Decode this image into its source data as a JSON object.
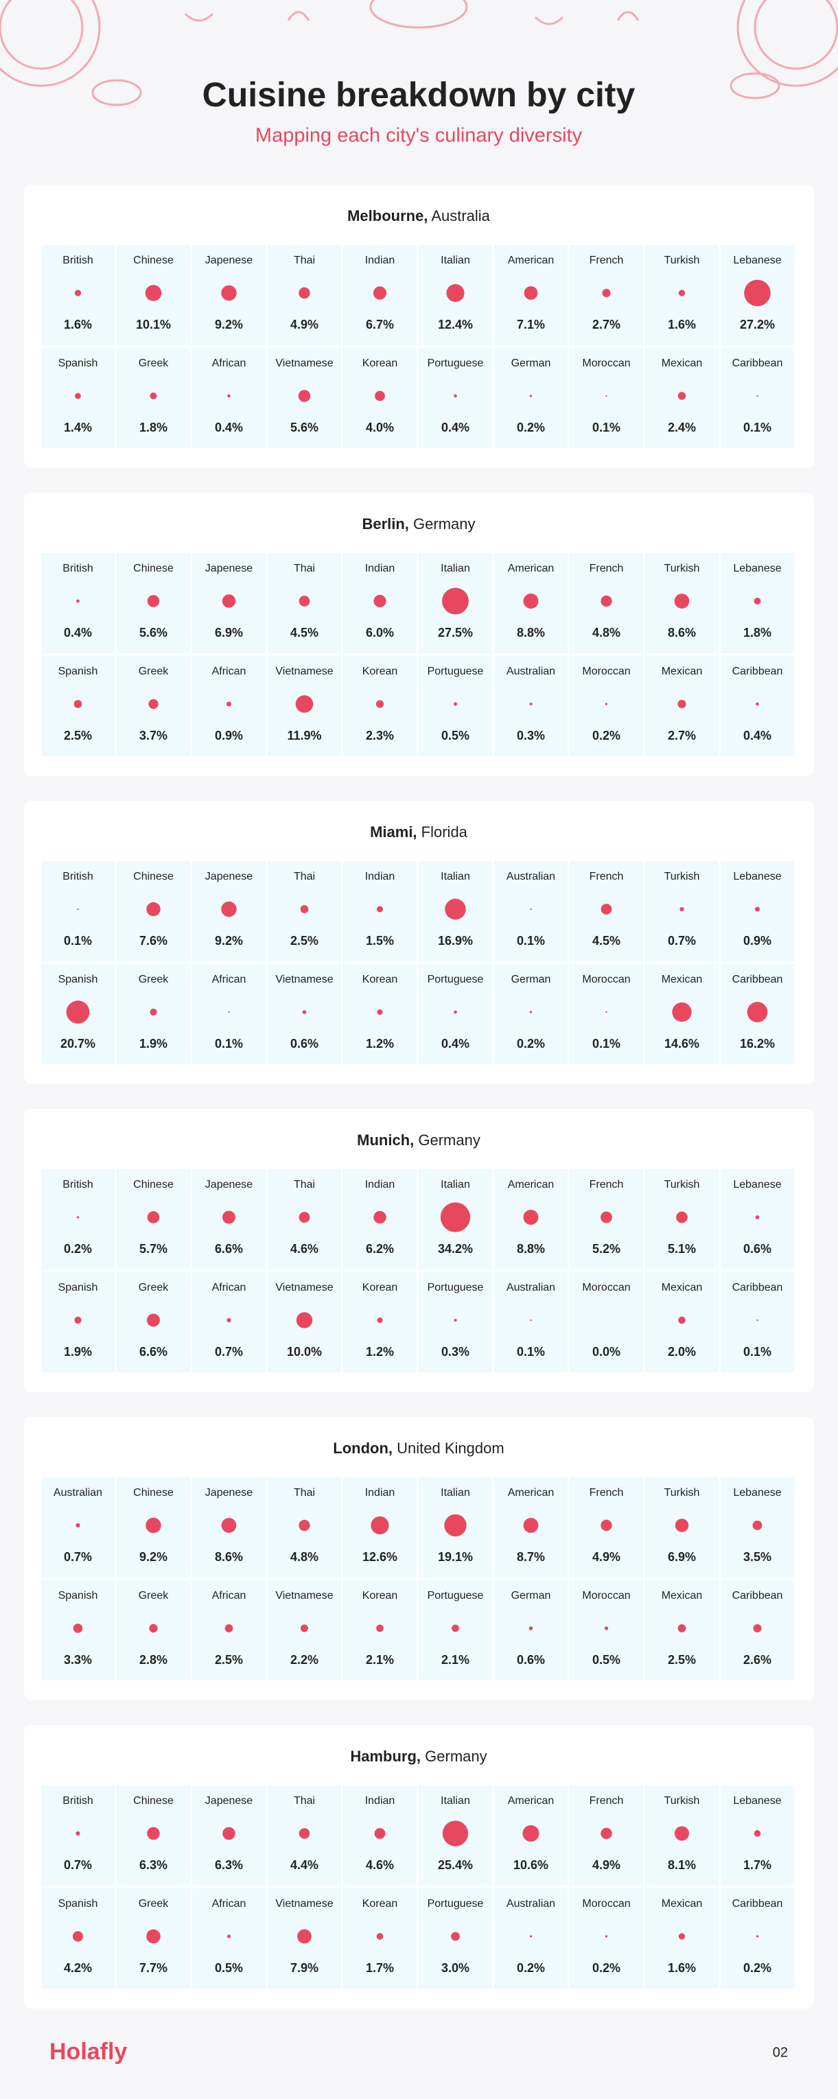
{
  "header": {
    "title": "Cuisine breakdown by city",
    "subtitle": "Mapping each city's culinary diversity"
  },
  "chart_data": [
    {
      "type": "bubble-grid",
      "title": "Melbourne,",
      "subtitle": "Australia",
      "color": "#e8485f",
      "categories": [
        "British",
        "Chinese",
        "Japenese",
        "Thai",
        "Indian",
        "Italian",
        "American",
        "French",
        "Turkish",
        "Lebanese",
        "Spanish",
        "Greek",
        "African",
        "Vietnamese",
        "Korean",
        "Portuguese",
        "German",
        "Moroccan",
        "Mexican",
        "Caribbean"
      ],
      "values": [
        1.6,
        10.1,
        9.2,
        4.9,
        6.7,
        12.4,
        7.1,
        2.7,
        1.6,
        27.2,
        1.4,
        1.8,
        0.4,
        5.6,
        4.0,
        0.4,
        0.2,
        0.1,
        2.4,
        0.1
      ],
      "value_labels": [
        "1.6%",
        "10.1%",
        "9.2%",
        "4.9%",
        "6.7%",
        "12.4%",
        "7.1%",
        "2.7%",
        "1.6%",
        "27.2%",
        "1.4%",
        "1.8%",
        "0.4%",
        "5.6%",
        "4.0%",
        "0.4%",
        "0.2%",
        "0.1%",
        "2.4%",
        "0.1%"
      ]
    },
    {
      "type": "bubble-grid",
      "title": "Berlin,",
      "subtitle": "Germany",
      "color": "#e8485f",
      "categories": [
        "British",
        "Chinese",
        "Japenese",
        "Thai",
        "Indian",
        "Italian",
        "American",
        "French",
        "Turkish",
        "Lebanese",
        "Spanish",
        "Greek",
        "African",
        "Vietnamese",
        "Korean",
        "Portuguese",
        "Australian",
        "Moroccan",
        "Mexican",
        "Caribbean"
      ],
      "values": [
        0.4,
        5.6,
        6.9,
        4.5,
        6.0,
        27.5,
        8.8,
        4.8,
        8.6,
        1.8,
        2.5,
        3.7,
        0.9,
        11.9,
        2.3,
        0.5,
        0.3,
        0.2,
        2.7,
        0.4
      ],
      "value_labels": [
        "0.4%",
        "5.6%",
        "6.9%",
        "4.5%",
        "6.0%",
        "27.5%",
        "8.8%",
        "4.8%",
        "8.6%",
        "1.8%",
        "2.5%",
        "3.7%",
        "0.9%",
        "11.9%",
        "2.3%",
        "0.5%",
        "0.3%",
        "0.2%",
        "2.7%",
        "0.4%"
      ]
    },
    {
      "type": "bubble-grid",
      "title": "Miami,",
      "subtitle": "Florida",
      "color": "#e8485f",
      "categories": [
        "British",
        "Chinese",
        "Japenese",
        "Thai",
        "Indian",
        "Italian",
        "Australian",
        "French",
        "Turkish",
        "Lebanese",
        "Spanish",
        "Greek",
        "African",
        "Vietnamese",
        "Korean",
        "Portuguese",
        "German",
        "Moroccan",
        "Mexican",
        "Caribbean"
      ],
      "values": [
        0.1,
        7.6,
        9.2,
        2.5,
        1.5,
        16.9,
        0.1,
        4.5,
        0.7,
        0.9,
        20.7,
        1.9,
        0.1,
        0.6,
        1.2,
        0.4,
        0.2,
        0.1,
        14.6,
        16.2
      ],
      "value_labels": [
        "0.1%",
        "7.6%",
        "9.2%",
        "2.5%",
        "1.5%",
        "16.9%",
        "0.1%",
        "4.5%",
        "0.7%",
        "0.9%",
        "20.7%",
        "1.9%",
        "0.1%",
        "0.6%",
        "1.2%",
        "0.4%",
        "0.2%",
        "0.1%",
        "14.6%",
        "16.2%"
      ]
    },
    {
      "type": "bubble-grid",
      "title": "Munich,",
      "subtitle": "Germany",
      "color": "#e8485f",
      "categories": [
        "British",
        "Chinese",
        "Japenese",
        "Thai",
        "Indian",
        "Italian",
        "American",
        "French",
        "Turkish",
        "Lebanese",
        "Spanish",
        "Greek",
        "African",
        "Vietnamese",
        "Korean",
        "Portuguese",
        "Australian",
        "Moroccan",
        "Mexican",
        "Caribbean"
      ],
      "values": [
        0.2,
        5.7,
        6.6,
        4.6,
        6.2,
        34.2,
        8.8,
        5.2,
        5.1,
        0.6,
        1.9,
        6.6,
        0.7,
        10.0,
        1.2,
        0.3,
        0.1,
        0.0,
        2.0,
        0.1
      ],
      "value_labels": [
        "0.2%",
        "5.7%",
        "6.6%",
        "4.6%",
        "6.2%",
        "34.2%",
        "8.8%",
        "5.2%",
        "5.1%",
        "0.6%",
        "1.9%",
        "6.6%",
        "0.7%",
        "10.0%",
        "1.2%",
        "0.3%",
        "0.1%",
        "0.0%",
        "2.0%",
        "0.1%"
      ]
    },
    {
      "type": "bubble-grid",
      "title": "London,",
      "subtitle": "United Kingdom",
      "color": "#e8485f",
      "categories": [
        "Australian",
        "Chinese",
        "Japenese",
        "Thai",
        "Indian",
        "Italian",
        "American",
        "French",
        "Turkish",
        "Lebanese",
        "Spanish",
        "Greek",
        "African",
        "Vietnamese",
        "Korean",
        "Portuguese",
        "German",
        "Moroccan",
        "Mexican",
        "Caribbean"
      ],
      "values": [
        0.7,
        9.2,
        8.6,
        4.8,
        12.6,
        19.1,
        8.7,
        4.9,
        6.9,
        3.5,
        3.3,
        2.8,
        2.5,
        2.2,
        2.1,
        2.1,
        0.6,
        0.5,
        2.5,
        2.6
      ],
      "value_labels": [
        "0.7%",
        "9.2%",
        "8.6%",
        "4.8%",
        "12.6%",
        "19.1%",
        "8.7%",
        "4.9%",
        "6.9%",
        "3.5%",
        "3.3%",
        "2.8%",
        "2.5%",
        "2.2%",
        "2.1%",
        "2.1%",
        "0.6%",
        "0.5%",
        "2.5%",
        "2.6%"
      ]
    },
    {
      "type": "bubble-grid",
      "title": "Hamburg,",
      "subtitle": "Germany",
      "color": "#e8485f",
      "categories": [
        "British",
        "Chinese",
        "Japenese",
        "Thai",
        "Indian",
        "Italian",
        "American",
        "French",
        "Turkish",
        "Lebanese",
        "Spanish",
        "Greek",
        "African",
        "Vietnamese",
        "Korean",
        "Portuguese",
        "Australian",
        "Moroccan",
        "Mexican",
        "Caribbean"
      ],
      "values": [
        0.7,
        6.3,
        6.3,
        4.4,
        4.6,
        25.4,
        10.6,
        4.9,
        8.1,
        1.7,
        4.2,
        7.7,
        0.5,
        7.9,
        1.7,
        3.0,
        0.2,
        0.2,
        1.6,
        0.2
      ],
      "value_labels": [
        "0.7%",
        "6.3%",
        "6.3%",
        "4.4%",
        "4.6%",
        "25.4%",
        "10.6%",
        "4.9%",
        "8.1%",
        "1.7%",
        "4.2%",
        "7.7%",
        "0.5%",
        "7.9%",
        "1.7%",
        "3.0%",
        "0.2%",
        "0.2%",
        "1.6%",
        "0.2%"
      ]
    }
  ],
  "footer": {
    "logo": "Holafly",
    "page": "02"
  }
}
